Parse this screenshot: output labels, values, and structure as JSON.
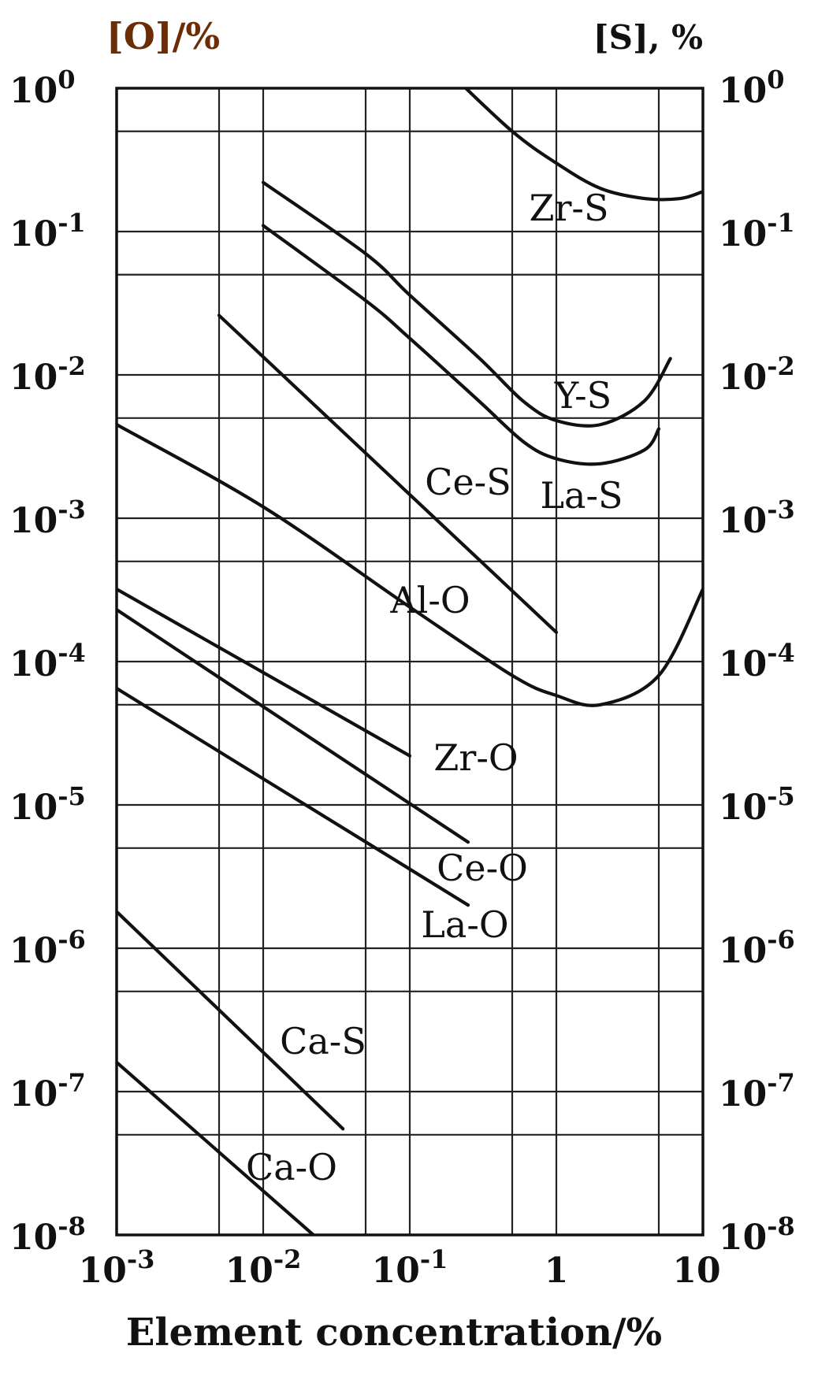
{
  "chart_data": {
    "type": "line",
    "title": "",
    "xlabel": "Element concentration/%",
    "ylabel_left": "[O]/%",
    "ylabel_right": "[S], %",
    "x_scale": "log",
    "y_scale": "log",
    "xlim": [
      0.001,
      10
    ],
    "ylim": [
      1e-08,
      1
    ],
    "grid": true,
    "legend": "none (inline curve labels)",
    "x_ticks": [
      {
        "value": 0.001,
        "base": "10",
        "exp": "-3"
      },
      {
        "value": 0.01,
        "base": "10",
        "exp": "-2"
      },
      {
        "value": 0.1,
        "base": "10",
        "exp": "-1"
      },
      {
        "value": 1,
        "base": "1",
        "exp": ""
      },
      {
        "value": 10,
        "base": "10",
        "exp": ""
      }
    ],
    "y_ticks": [
      {
        "value": 1,
        "base": "10",
        "exp": "0"
      },
      {
        "value": 0.1,
        "base": "10",
        "exp": "-1"
      },
      {
        "value": 0.01,
        "base": "10",
        "exp": "-2"
      },
      {
        "value": 0.001,
        "base": "10",
        "exp": "-3"
      },
      {
        "value": 0.0001,
        "base": "10",
        "exp": "-4"
      },
      {
        "value": 1e-05,
        "base": "10",
        "exp": "-5"
      },
      {
        "value": 1e-06,
        "base": "10",
        "exp": "-6"
      },
      {
        "value": 1e-07,
        "base": "10",
        "exp": "-7"
      },
      {
        "value": 1e-08,
        "base": "10",
        "exp": "-8"
      }
    ],
    "x_gridlines": [
      0.001,
      0.005,
      0.01,
      0.05,
      0.1,
      0.5,
      1,
      5,
      10
    ],
    "y_gridlines": [
      1,
      0.5,
      0.1,
      0.05,
      0.01,
      0.005,
      0.001,
      0.0005,
      0.0001,
      5e-05,
      1e-05,
      5e-06,
      1e-06,
      5e-07,
      1e-07,
      5e-08,
      1e-08
    ],
    "series": [
      {
        "name": "Zr-S",
        "points": [
          [
            0.2,
            1.2
          ],
          [
            0.5,
            0.5
          ],
          [
            1,
            0.3
          ],
          [
            2,
            0.2
          ],
          [
            4,
            0.17
          ],
          [
            7,
            0.17
          ],
          [
            10,
            0.19
          ]
        ]
      },
      {
        "name": "Y-S",
        "points": [
          [
            0.01,
            0.22
          ],
          [
            0.05,
            0.07
          ],
          [
            0.1,
            0.036
          ],
          [
            0.3,
            0.013
          ],
          [
            0.6,
            0.0065
          ],
          [
            1,
            0.0048
          ],
          [
            2,
            0.0045
          ],
          [
            4,
            0.0066
          ],
          [
            6,
            0.013
          ]
        ]
      },
      {
        "name": "La-S",
        "points": [
          [
            0.01,
            0.11
          ],
          [
            0.05,
            0.033
          ],
          [
            0.1,
            0.018
          ],
          [
            0.3,
            0.0065
          ],
          [
            0.6,
            0.0034
          ],
          [
            1,
            0.0026
          ],
          [
            2,
            0.0024
          ],
          [
            4,
            0.003
          ],
          [
            5,
            0.0042
          ]
        ]
      },
      {
        "name": "Ce-S",
        "points": [
          [
            0.005,
            0.026
          ],
          [
            1,
            0.00016
          ]
        ]
      },
      {
        "name": "Al-O",
        "points": [
          [
            0.001,
            0.0045
          ],
          [
            0.01,
            0.0012
          ],
          [
            0.1,
            0.00024
          ],
          [
            0.5,
            8e-05
          ],
          [
            1,
            5.8e-05
          ],
          [
            2,
            5e-05
          ],
          [
            5,
            8e-05
          ],
          [
            10,
            0.00032
          ]
        ]
      },
      {
        "name": "Zr-O",
        "points": [
          [
            0.001,
            0.00032
          ],
          [
            0.1,
            2.2e-05
          ]
        ]
      },
      {
        "name": "Ce-O",
        "points": [
          [
            0.001,
            0.00023
          ],
          [
            0.25,
            5.5e-06
          ]
        ]
      },
      {
        "name": "La-O",
        "points": [
          [
            0.001,
            6.5e-05
          ],
          [
            0.25,
            2e-06
          ]
        ]
      },
      {
        "name": "Ca-S",
        "points": [
          [
            0.001,
            1.8e-06
          ],
          [
            0.035,
            5.5e-08
          ]
        ]
      },
      {
        "name": "Ca-O",
        "points": [
          [
            0.001,
            1.6e-07
          ],
          [
            0.022,
            1e-08
          ]
        ]
      }
    ]
  }
}
